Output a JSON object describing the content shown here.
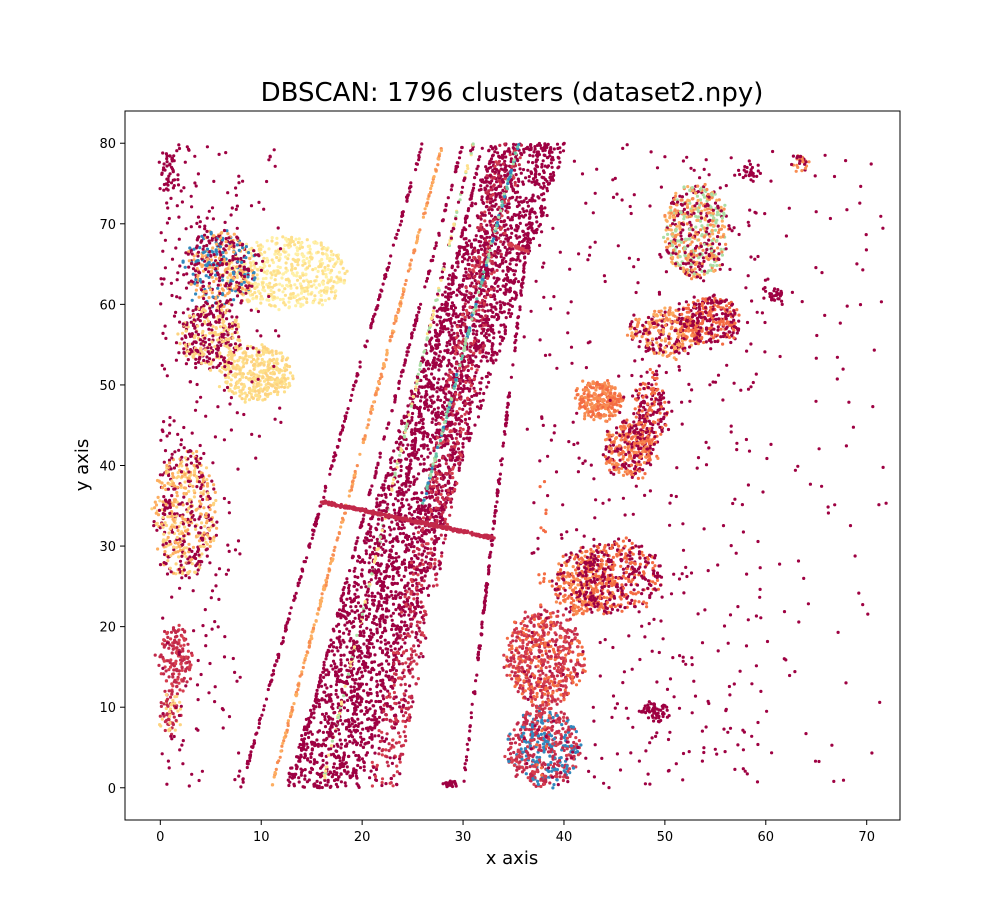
{
  "chart_data": {
    "type": "scatter",
    "title": "DBSCAN: 1796 clusters (dataset2.npy)",
    "xlabel": "x axis",
    "ylabel": "y axis",
    "xlim": [
      -3.5,
      73.3
    ],
    "ylim": [
      -4,
      84
    ],
    "xticks": [
      0,
      10,
      20,
      30,
      40,
      50,
      60,
      70
    ],
    "yticks": [
      0,
      10,
      20,
      30,
      40,
      50,
      60,
      70,
      80
    ],
    "grid": false,
    "legend": "none",
    "colormap": "Spectral",
    "palette": [
      "#9e0142",
      "#c2294a",
      "#d53e4f",
      "#f46d43",
      "#f88d52",
      "#fdae61",
      "#fdd380",
      "#fee08b",
      "#fff0a6",
      "#e6f598",
      "#abdda4",
      "#66c2a5",
      "#3288bd"
    ],
    "dominant_color": "#9e0142",
    "regions": [
      {
        "shape": "band",
        "from": [
          16,
          0
        ],
        "to": [
          36.5,
          80
        ],
        "width": 7.5,
        "n": 3000,
        "colors": [
          "#9e0142"
        ]
      },
      {
        "shape": "band",
        "from": [
          22,
          0
        ],
        "to": [
          34.5,
          80
        ],
        "width": 3,
        "n": 900,
        "colors": [
          "#c2294a",
          "#d53e4f",
          "#9e0142"
        ]
      },
      {
        "shape": "line",
        "from": [
          8,
          0
        ],
        "to": [
          26,
          80
        ],
        "n": 220,
        "colors": [
          "#9e0142"
        ]
      },
      {
        "shape": "line",
        "from": [
          11,
          0
        ],
        "to": [
          28,
          80
        ],
        "n": 260,
        "colors": [
          "#fdae61",
          "#f88d52"
        ]
      },
      {
        "shape": "line",
        "from": [
          13,
          0
        ],
        "to": [
          30,
          80
        ],
        "n": 200,
        "colors": [
          "#9e0142"
        ]
      },
      {
        "shape": "line",
        "from": [
          16,
          0
        ],
        "to": [
          31,
          80
        ],
        "n": 240,
        "colors": [
          "#abdda4",
          "#fee08b",
          "#9e0142"
        ]
      },
      {
        "shape": "line",
        "from": [
          17.5,
          0
        ],
        "to": [
          32,
          80
        ],
        "n": 200,
        "colors": [
          "#9e0142"
        ]
      },
      {
        "shape": "line",
        "from": [
          30,
          0
        ],
        "to": [
          37.5,
          80
        ],
        "n": 200,
        "colors": [
          "#9e0142"
        ]
      },
      {
        "shape": "line",
        "from": [
          26,
          35
        ],
        "to": [
          35.5,
          80
        ],
        "n": 160,
        "colors": [
          "#66c2a5",
          "#abdda4",
          "#3288bd"
        ]
      },
      {
        "shape": "line",
        "from": [
          16,
          35.5
        ],
        "to": [
          33,
          31
        ],
        "n": 400,
        "width": 0.6,
        "colors": [
          "#c2294a"
        ]
      },
      {
        "shape": "line",
        "from": [
          34.5,
          67.5
        ],
        "to": [
          36.5,
          66.5
        ],
        "n": 40,
        "colors": [
          "#d53e4f"
        ]
      },
      {
        "shape": "ellipse",
        "center": [
          12.5,
          64
        ],
        "rx": 6,
        "ry": 4.5,
        "n": 500,
        "colors": [
          "#fff0a6",
          "#fee08b"
        ]
      },
      {
        "shape": "ellipse",
        "center": [
          9.5,
          51.5
        ],
        "rx": 3.5,
        "ry": 3.5,
        "n": 380,
        "colors": [
          "#fee08b",
          "#fdd380"
        ]
      },
      {
        "shape": "ellipse",
        "center": [
          6,
          64.5
        ],
        "rx": 3.5,
        "ry": 5,
        "n": 420,
        "colors": [
          "#9e0142",
          "#fdae61",
          "#3288bd"
        ]
      },
      {
        "shape": "ellipse",
        "center": [
          5,
          56
        ],
        "rx": 3,
        "ry": 4,
        "n": 320,
        "colors": [
          "#9e0142",
          "#fdd380"
        ]
      },
      {
        "shape": "ellipse",
        "center": [
          2.5,
          34
        ],
        "rx": 3,
        "ry": 8,
        "n": 500,
        "colors": [
          "#fdae61",
          "#fdd380",
          "#9e0142"
        ]
      },
      {
        "shape": "ellipse",
        "center": [
          1.5,
          16
        ],
        "rx": 1.5,
        "ry": 4,
        "n": 150,
        "colors": [
          "#d53e4f",
          "#c2294a"
        ]
      },
      {
        "shape": "ellipse",
        "center": [
          1,
          9.5
        ],
        "rx": 1,
        "ry": 3,
        "n": 80,
        "colors": [
          "#fdd380",
          "#c2294a"
        ]
      },
      {
        "shape": "ellipse",
        "center": [
          0.8,
          76.5
        ],
        "rx": 0.9,
        "ry": 2.5,
        "n": 40,
        "colors": [
          "#9e0142"
        ]
      },
      {
        "shape": "ellipse",
        "center": [
          38,
          16
        ],
        "rx": 3.8,
        "ry": 6,
        "n": 600,
        "colors": [
          "#d53e4f",
          "#c2294a",
          "#f46d43"
        ]
      },
      {
        "shape": "ellipse",
        "center": [
          38,
          5
        ],
        "rx": 3.5,
        "ry": 5,
        "n": 500,
        "colors": [
          "#c2294a",
          "#d53e4f",
          "#3288bd"
        ]
      },
      {
        "shape": "ellipse",
        "center": [
          42,
          25.5
        ],
        "rx": 3,
        "ry": 4,
        "n": 350,
        "colors": [
          "#f46d43",
          "#f88d52",
          "#9e0142"
        ]
      },
      {
        "shape": "ellipse",
        "center": [
          45.5,
          26
        ],
        "rx": 4,
        "ry": 5,
        "n": 350,
        "colors": [
          "#9e0142",
          "#f46d43"
        ]
      },
      {
        "shape": "ellipse",
        "center": [
          46.5,
          42
        ],
        "rx": 2.5,
        "ry": 3.5,
        "n": 300,
        "colors": [
          "#f88d52",
          "#f46d43",
          "#9e0142"
        ]
      },
      {
        "shape": "ellipse",
        "center": [
          43.5,
          48
        ],
        "rx": 2,
        "ry": 2.5,
        "n": 250,
        "colors": [
          "#f88d52",
          "#f46d43"
        ]
      },
      {
        "shape": "ellipse",
        "center": [
          50,
          56.5
        ],
        "rx": 3.5,
        "ry": 3,
        "n": 300,
        "colors": [
          "#fdae61",
          "#f88d52",
          "#9e0142"
        ]
      },
      {
        "shape": "ellipse",
        "center": [
          54.5,
          58
        ],
        "rx": 3,
        "ry": 3,
        "n": 300,
        "colors": [
          "#9e0142",
          "#f46d43"
        ]
      },
      {
        "shape": "ellipse",
        "center": [
          53,
          69
        ],
        "rx": 3,
        "ry": 6,
        "n": 500,
        "colors": [
          "#9e0142",
          "#fdae61",
          "#f88d52",
          "#abdda4"
        ]
      },
      {
        "shape": "ellipse",
        "center": [
          48.5,
          47
        ],
        "rx": 1.5,
        "ry": 5,
        "n": 180,
        "colors": [
          "#f46d43",
          "#9e0142"
        ]
      },
      {
        "shape": "ellipse",
        "center": [
          49,
          9.5
        ],
        "rx": 1.2,
        "ry": 1.2,
        "n": 60,
        "colors": [
          "#9e0142"
        ]
      },
      {
        "shape": "ellipse",
        "center": [
          58.5,
          76.5
        ],
        "rx": 0.8,
        "ry": 1,
        "n": 30,
        "colors": [
          "#9e0142"
        ]
      },
      {
        "shape": "ellipse",
        "center": [
          63.5,
          77.5
        ],
        "rx": 0.8,
        "ry": 1.2,
        "n": 30,
        "colors": [
          "#f88d52",
          "#9e0142"
        ]
      },
      {
        "shape": "ellipse",
        "center": [
          61,
          61
        ],
        "rx": 1,
        "ry": 1,
        "n": 30,
        "colors": [
          "#9e0142"
        ]
      },
      {
        "shape": "ellipse",
        "center": [
          28.9,
          0.5
        ],
        "rx": 0.6,
        "ry": 0.5,
        "n": 20,
        "colors": [
          "#9e0142"
        ]
      },
      {
        "shape": "ellipse",
        "center": [
          38,
          20
        ],
        "rx": 0.5,
        "ry": 20,
        "n": 30,
        "colors": [
          "#f46d43"
        ]
      },
      {
        "shape": "scatter",
        "x": [
          36,
          72
        ],
        "y": [
          0,
          80
        ],
        "n": 700,
        "colors": [
          "#9e0142"
        ]
      },
      {
        "shape": "scatter",
        "x": [
          0,
          8
        ],
        "y": [
          0,
          80
        ],
        "n": 220,
        "colors": [
          "#9e0142"
        ]
      },
      {
        "shape": "scatter",
        "x": [
          0,
          12
        ],
        "y": [
          40,
          80
        ],
        "n": 120,
        "colors": [
          "#9e0142"
        ]
      }
    ]
  }
}
